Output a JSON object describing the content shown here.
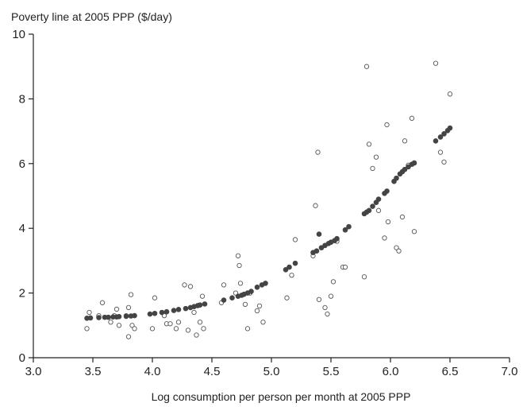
{
  "chart_data": {
    "type": "scatter",
    "ylabel": "Poverty line at 2005 PPP ($/day)",
    "xlabel": "Log consumption per person per month at 2005 PPP",
    "xlim": [
      3.0,
      7.0
    ],
    "ylim": [
      0,
      10
    ],
    "xticks": [
      "3.0",
      "3.5",
      "4.0",
      "4.5",
      "5.0",
      "5.5",
      "6.0",
      "6.5",
      "7.0"
    ],
    "yticks": [
      "0",
      "2",
      "4",
      "6",
      "8",
      "10"
    ],
    "grid": false,
    "series": [
      {
        "marker": "open-circle",
        "color": "#555555",
        "points": [
          [
            3.45,
            0.9
          ],
          [
            3.47,
            1.4
          ],
          [
            3.55,
            1.3
          ],
          [
            3.58,
            1.7
          ],
          [
            3.65,
            1.1
          ],
          [
            3.68,
            1.3
          ],
          [
            3.7,
            1.5
          ],
          [
            3.72,
            1.0
          ],
          [
            3.78,
            1.3
          ],
          [
            3.8,
            1.55
          ],
          [
            3.8,
            0.65
          ],
          [
            3.82,
            1.95
          ],
          [
            3.83,
            1.0
          ],
          [
            3.85,
            0.9
          ],
          [
            4.0,
            0.9
          ],
          [
            4.02,
            1.85
          ],
          [
            4.1,
            1.3
          ],
          [
            4.12,
            1.05
          ],
          [
            4.15,
            1.05
          ],
          [
            4.2,
            0.9
          ],
          [
            4.22,
            1.1
          ],
          [
            4.27,
            2.25
          ],
          [
            4.3,
            0.85
          ],
          [
            4.32,
            2.2
          ],
          [
            4.35,
            1.4
          ],
          [
            4.37,
            0.7
          ],
          [
            4.4,
            1.1
          ],
          [
            4.42,
            1.9
          ],
          [
            4.43,
            0.9
          ],
          [
            4.58,
            1.7
          ],
          [
            4.6,
            2.25
          ],
          [
            4.7,
            2.0
          ],
          [
            4.72,
            3.15
          ],
          [
            4.73,
            2.85
          ],
          [
            4.74,
            2.3
          ],
          [
            4.78,
            1.65
          ],
          [
            4.8,
            0.9
          ],
          [
            4.82,
            2.0
          ],
          [
            4.88,
            1.45
          ],
          [
            4.9,
            1.6
          ],
          [
            4.93,
            1.1
          ],
          [
            5.13,
            1.85
          ],
          [
            5.17,
            2.55
          ],
          [
            5.2,
            3.65
          ],
          [
            5.35,
            3.15
          ],
          [
            5.37,
            4.7
          ],
          [
            5.39,
            6.35
          ],
          [
            5.4,
            1.8
          ],
          [
            5.45,
            1.55
          ],
          [
            5.47,
            1.35
          ],
          [
            5.5,
            1.9
          ],
          [
            5.52,
            2.35
          ],
          [
            5.55,
            3.6
          ],
          [
            5.6,
            2.8
          ],
          [
            5.62,
            2.8
          ],
          [
            5.78,
            2.5
          ],
          [
            5.8,
            9.0
          ],
          [
            5.82,
            6.6
          ],
          [
            5.85,
            5.85
          ],
          [
            5.88,
            6.2
          ],
          [
            5.9,
            4.55
          ],
          [
            5.95,
            3.7
          ],
          [
            5.97,
            7.2
          ],
          [
            5.98,
            4.2
          ],
          [
            6.05,
            3.4
          ],
          [
            6.07,
            3.3
          ],
          [
            6.1,
            4.35
          ],
          [
            6.12,
            6.7
          ],
          [
            6.15,
            5.95
          ],
          [
            6.18,
            7.4
          ],
          [
            6.2,
            3.9
          ],
          [
            6.38,
            9.1
          ],
          [
            6.42,
            6.35
          ],
          [
            6.45,
            6.05
          ],
          [
            6.5,
            8.15
          ]
        ]
      },
      {
        "marker": "filled-circle",
        "color": "#444444",
        "points": [
          [
            3.45,
            1.22
          ],
          [
            3.48,
            1.23
          ],
          [
            3.55,
            1.24
          ],
          [
            3.6,
            1.25
          ],
          [
            3.63,
            1.25
          ],
          [
            3.67,
            1.26
          ],
          [
            3.7,
            1.26
          ],
          [
            3.72,
            1.27
          ],
          [
            3.78,
            1.28
          ],
          [
            3.82,
            1.29
          ],
          [
            3.85,
            1.3
          ],
          [
            3.98,
            1.35
          ],
          [
            4.02,
            1.37
          ],
          [
            4.08,
            1.4
          ],
          [
            4.12,
            1.42
          ],
          [
            4.18,
            1.46
          ],
          [
            4.22,
            1.49
          ],
          [
            4.28,
            1.52
          ],
          [
            4.32,
            1.55
          ],
          [
            4.35,
            1.58
          ],
          [
            4.38,
            1.61
          ],
          [
            4.4,
            1.63
          ],
          [
            4.44,
            1.66
          ],
          [
            4.6,
            1.78
          ],
          [
            4.67,
            1.85
          ],
          [
            4.72,
            1.9
          ],
          [
            4.75,
            1.93
          ],
          [
            4.77,
            1.96
          ],
          [
            4.8,
            2.0
          ],
          [
            4.83,
            2.05
          ],
          [
            4.88,
            2.18
          ],
          [
            4.92,
            2.25
          ],
          [
            4.95,
            2.3
          ],
          [
            5.12,
            2.72
          ],
          [
            5.15,
            2.8
          ],
          [
            5.2,
            2.92
          ],
          [
            5.35,
            3.25
          ],
          [
            5.38,
            3.3
          ],
          [
            5.4,
            3.82
          ],
          [
            5.42,
            3.4
          ],
          [
            5.45,
            3.47
          ],
          [
            5.48,
            3.53
          ],
          [
            5.5,
            3.57
          ],
          [
            5.53,
            3.62
          ],
          [
            5.55,
            3.68
          ],
          [
            5.62,
            3.95
          ],
          [
            5.65,
            4.05
          ],
          [
            5.78,
            4.45
          ],
          [
            5.8,
            4.5
          ],
          [
            5.82,
            4.55
          ],
          [
            5.85,
            4.68
          ],
          [
            5.88,
            4.8
          ],
          [
            5.9,
            4.9
          ],
          [
            5.95,
            5.08
          ],
          [
            5.97,
            5.15
          ],
          [
            6.03,
            5.45
          ],
          [
            6.05,
            5.55
          ],
          [
            6.08,
            5.68
          ],
          [
            6.1,
            5.75
          ],
          [
            6.12,
            5.82
          ],
          [
            6.15,
            5.9
          ],
          [
            6.18,
            5.98
          ],
          [
            6.2,
            6.02
          ],
          [
            6.38,
            6.7
          ],
          [
            6.42,
            6.82
          ],
          [
            6.45,
            6.92
          ],
          [
            6.48,
            7.02
          ],
          [
            6.5,
            7.1
          ]
        ]
      }
    ]
  }
}
